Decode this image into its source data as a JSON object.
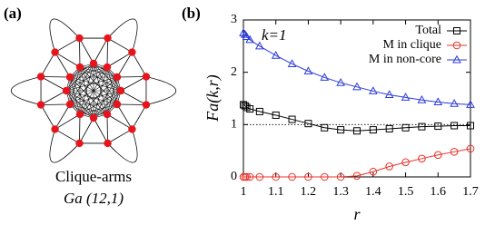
{
  "panel_a": {
    "label": "(a)",
    "caption": "Clique-arms",
    "subcaption": "Ga (12,1)"
  },
  "chart_data": {
    "type": "line",
    "panel_label": "(b)",
    "annotation": "k=1",
    "xlabel": "r",
    "ylabel": "Fa(k,r)",
    "xlim": [
      1,
      1.7
    ],
    "ylim": [
      0,
      3
    ],
    "xticks": [
      1,
      1.1,
      1.2,
      1.3,
      1.4,
      1.5,
      1.6,
      1.7
    ],
    "yticks": [
      0,
      1,
      2,
      3
    ],
    "reference_line": 1,
    "legend": "upper right",
    "x": [
      1,
      1.005,
      1.01,
      1.02,
      1.05,
      1.1,
      1.15,
      1.2,
      1.25,
      1.3,
      1.35,
      1.4,
      1.45,
      1.5,
      1.55,
      1.6,
      1.65,
      1.7
    ],
    "series": [
      {
        "name": "Total",
        "color": "#000000",
        "marker": "square",
        "values": [
          1.38,
          1.36,
          1.33,
          1.3,
          1.25,
          1.18,
          1.1,
          1.02,
          0.94,
          0.9,
          0.88,
          0.9,
          0.92,
          0.94,
          0.96,
          0.97,
          0.98,
          0.98
        ]
      },
      {
        "name": "M in clique",
        "color": "#e8332a",
        "marker": "circle",
        "values": [
          0,
          0,
          0,
          0,
          0,
          0,
          0,
          0,
          0,
          0,
          0.02,
          0.1,
          0.2,
          0.28,
          0.35,
          0.42,
          0.48,
          0.54
        ]
      },
      {
        "name": "M in non-core",
        "color": "#2b3bdb",
        "marker": "triangle",
        "values": [
          2.75,
          2.72,
          2.68,
          2.62,
          2.5,
          2.32,
          2.16,
          2.02,
          1.9,
          1.8,
          1.72,
          1.64,
          1.57,
          1.52,
          1.47,
          1.43,
          1.4,
          1.38
        ]
      }
    ]
  }
}
